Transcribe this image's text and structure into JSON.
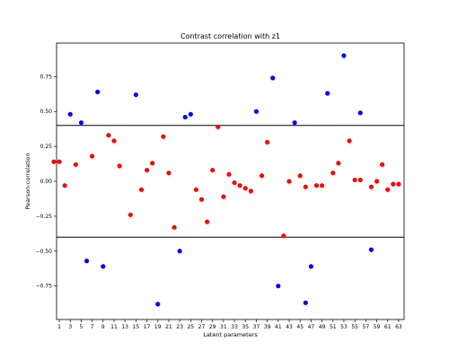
{
  "chart_data": {
    "type": "scatter",
    "title": "Contrast correlation with z1",
    "xlabel": "Latent parameters",
    "ylabel": "Pearson-correlation",
    "xlim": [
      0.5,
      64
    ],
    "ylim": [
      -0.99,
      0.99
    ],
    "xticks": [
      1,
      3,
      5,
      7,
      9,
      11,
      13,
      15,
      17,
      19,
      21,
      23,
      25,
      27,
      29,
      31,
      33,
      35,
      37,
      39,
      41,
      43,
      45,
      47,
      49,
      51,
      53,
      55,
      57,
      59,
      61,
      63
    ],
    "yticks": [
      -0.75,
      -0.5,
      -0.25,
      0.0,
      0.25,
      0.5,
      0.75
    ],
    "ytick_labels": [
      "−0.75",
      "−0.50",
      "−0.25",
      "0.00",
      "0.25",
      "0.50",
      "0.75"
    ],
    "thresholds": [
      0.4,
      -0.4
    ],
    "grid": false,
    "colors": {
      "strong": "#0000ff",
      "weak": "#ff0000",
      "threshold": "#000000"
    },
    "series": [
      {
        "color": "#ff0000",
        "x": [
          0,
          1,
          2,
          4,
          7,
          10,
          11,
          12,
          14,
          16,
          17,
          18,
          20,
          21,
          22,
          26,
          27,
          28,
          29,
          30,
          31,
          32,
          33,
          34,
          35,
          36,
          38,
          39,
          42,
          43,
          45,
          46,
          48,
          49,
          51,
          52,
          54,
          55,
          56,
          58,
          59,
          60,
          61,
          62,
          63
        ],
        "y": [
          0.14,
          0.14,
          -0.03,
          0.12,
          0.18,
          0.33,
          0.29,
          0.11,
          -0.24,
          -0.06,
          0.08,
          0.13,
          0.32,
          0.06,
          -0.33,
          -0.06,
          -0.13,
          -0.29,
          0.08,
          0.39,
          -0.11,
          0.05,
          -0.01,
          -0.03,
          -0.05,
          -0.07,
          0.04,
          0.28,
          -0.39,
          0.0,
          0.04,
          -0.04,
          -0.03,
          -0.03,
          0.06,
          0.13,
          0.29,
          0.01,
          0.01,
          -0.04,
          0.0,
          0.12,
          -0.06,
          -0.02,
          -0.02
        ]
      },
      {
        "color": "#0000ff",
        "x": [
          3,
          5,
          6,
          8,
          9,
          15,
          19,
          23,
          24,
          25,
          37,
          40,
          41,
          44,
          46,
          47,
          50,
          53,
          56,
          58
        ],
        "y": [
          0.48,
          0.42,
          -0.57,
          0.64,
          -0.61,
          0.62,
          -0.88,
          -0.5,
          0.46,
          0.48,
          0.5,
          0.74,
          -0.75,
          0.42,
          -0.87,
          -0.61,
          0.63,
          0.9,
          0.49,
          -0.49
        ]
      }
    ]
  }
}
